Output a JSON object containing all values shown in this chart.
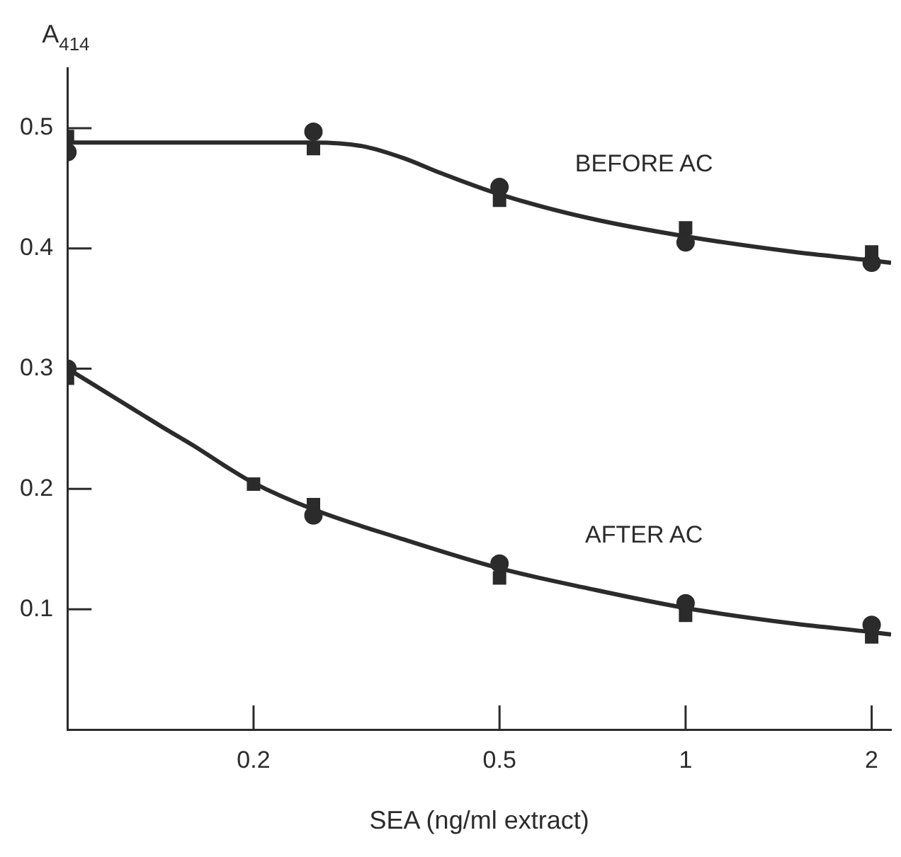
{
  "chart_data": {
    "type": "scatter",
    "xlabel": "SEA (ng/ml extract)",
    "ylabel": "A$_{414}$",
    "log": "x",
    "xlim": [
      0.1,
      2.15
    ],
    "xticks": [
      0.2,
      0.5,
      1,
      2
    ],
    "ylim": [
      0,
      0.55
    ],
    "yticks": [
      0.1,
      0.2,
      0.3,
      0.4,
      0.5
    ],
    "grid": false,
    "legend": false,
    "series": [
      {
        "type": "line",
        "name": "BEFORE AC",
        "color": "#2b2b2b",
        "marker": "none",
        "line_style": "solid",
        "x": [
          0.1,
          0.25,
          0.3,
          0.35,
          0.4,
          0.5,
          0.7,
          1,
          1.5,
          2,
          2.15
        ],
        "values": [
          0.488,
          0.488,
          0.485,
          0.475,
          0.463,
          0.445,
          0.425,
          0.41,
          0.397,
          0.39,
          0.388
        ]
      },
      {
        "type": "line",
        "name": "AFTER AC",
        "color": "#2b2b2b",
        "marker": "none",
        "line_style": "solid",
        "x": [
          0.1,
          0.11,
          0.12,
          0.13,
          0.145,
          0.16,
          0.18,
          0.2,
          0.25,
          0.35,
          0.5,
          0.7,
          1,
          1.5,
          2,
          2.15
        ],
        "values": [
          0.3,
          0.287,
          0.275,
          0.264,
          0.249,
          0.236,
          0.219,
          0.205,
          0.183,
          0.158,
          0.134,
          0.117,
          0.101,
          0.088,
          0.081,
          0.079
        ]
      },
      {
        "color": "#2b2b2b",
        "marker": "circle",
        "x": [
          0.1,
          0.25,
          0.5,
          1,
          2
        ],
        "values": [
          0.48,
          0.497,
          0.451,
          0.405,
          0.388
        ]
      },
      {
        "color": "#2b2b2b",
        "marker": "square",
        "x": [
          0.1,
          0.25,
          0.5,
          1,
          2
        ],
        "values": [
          0.493,
          0.483,
          0.44,
          0.417,
          0.397
        ]
      },
      {
        "color": "#2b2b2b",
        "marker": "circle",
        "x": [
          0.1,
          0.25,
          0.5,
          1,
          2
        ],
        "values": [
          0.3,
          0.178,
          0.138,
          0.105,
          0.087
        ]
      },
      {
        "color": "#2b2b2b",
        "marker": "square",
        "x": [
          0.1,
          0.2,
          0.25,
          0.5,
          1,
          2
        ],
        "values": [
          0.292,
          0.204,
          0.187,
          0.126,
          0.095,
          0.077
        ]
      }
    ]
  }
}
